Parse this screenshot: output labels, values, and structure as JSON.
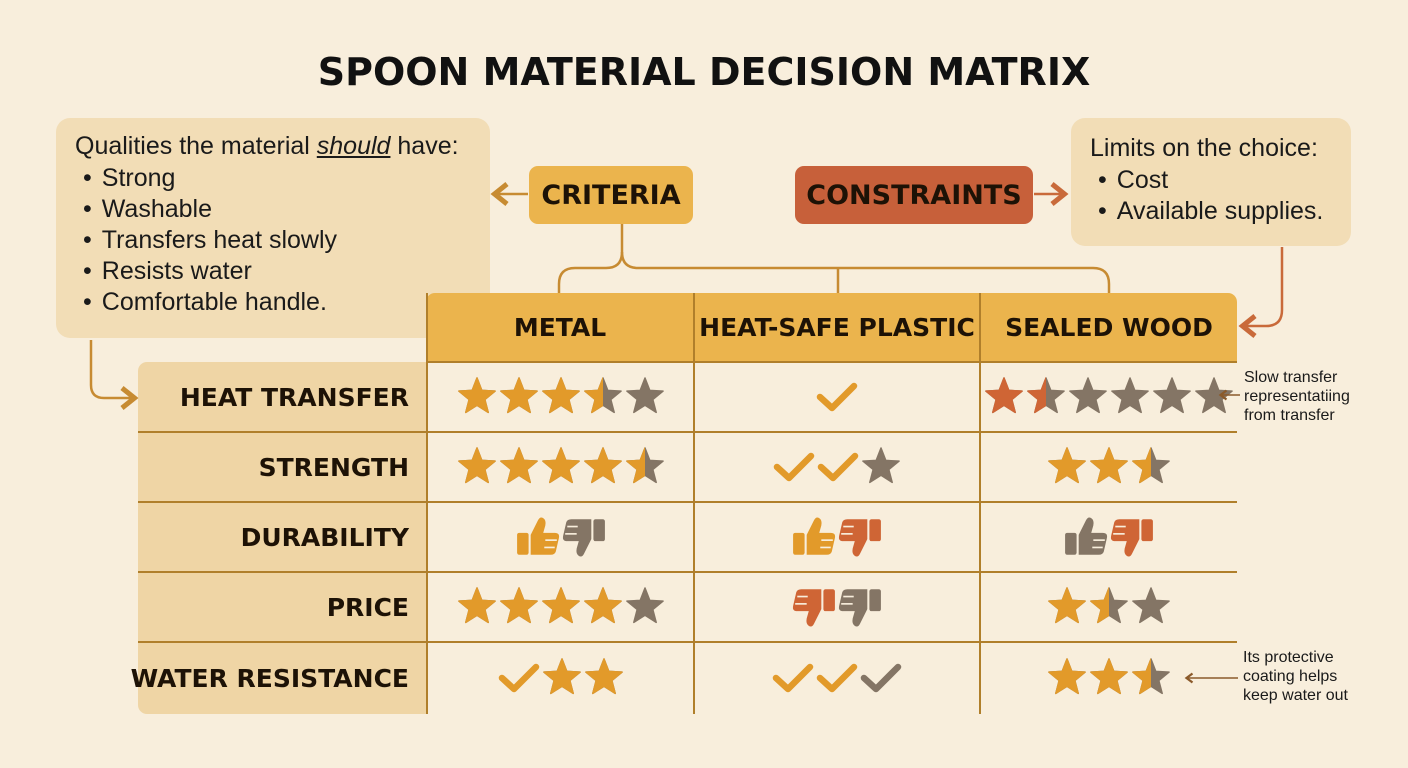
{
  "title": "SPOON MATERIAL DECISION MATRIX",
  "criteria_box": {
    "heading_pre": "Qualities the material ",
    "heading_em": "should",
    "heading_post": " have:",
    "items": [
      "Strong",
      "Washable",
      "Transfers heat slowly",
      "Resists water",
      "Comfortable handle."
    ]
  },
  "criteria_label": "CRITERIA",
  "constraints_label": "CONSTRAINTS",
  "constraints_box": {
    "heading": "Limits on the choice:",
    "items": [
      "Cost",
      "Available supplies."
    ]
  },
  "columns": [
    "METAL",
    "HEAT-SAFE PLASTIC",
    "SEALED WOOD"
  ],
  "rows": [
    {
      "label": "HEAT TRANSFER",
      "cells": [
        [
          {
            "t": "star",
            "v": 3.5,
            "n": 5,
            "c": "gold"
          }
        ],
        [
          {
            "t": "check",
            "n": 1,
            "c": "gold"
          }
        ],
        [
          {
            "t": "star",
            "v": 1.5,
            "n": 6,
            "c": "orange"
          }
        ]
      ]
    },
    {
      "label": "STRENGTH",
      "cells": [
        [
          {
            "t": "star",
            "v": 4.5,
            "n": 5,
            "c": "gold"
          }
        ],
        [
          {
            "t": "check",
            "n": 2,
            "c": "gold"
          },
          {
            "t": "star",
            "v": 0,
            "n": 1,
            "c": "gold"
          }
        ],
        [
          {
            "t": "star",
            "v": 2.5,
            "n": 3,
            "c": "gold"
          }
        ]
      ]
    },
    {
      "label": "DURABILITY",
      "cells": [
        [
          {
            "t": "up",
            "c": "gold"
          },
          {
            "t": "down",
            "c": "gray"
          }
        ],
        [
          {
            "t": "up",
            "c": "gold"
          },
          {
            "t": "down",
            "c": "orange"
          }
        ],
        [
          {
            "t": "up",
            "c": "gray"
          },
          {
            "t": "down",
            "c": "orange"
          }
        ]
      ]
    },
    {
      "label": "PRICE",
      "cells": [
        [
          {
            "t": "star",
            "v": 4,
            "n": 5,
            "c": "gold"
          }
        ],
        [
          {
            "t": "down",
            "c": "orange"
          },
          {
            "t": "down",
            "c": "gray"
          }
        ],
        [
          {
            "t": "star",
            "v": 1.5,
            "n": 3,
            "c": "gold"
          }
        ]
      ]
    },
    {
      "label": "WATER RESISTANCE",
      "cells": [
        [
          {
            "t": "check",
            "n": 1,
            "c": "gold"
          },
          {
            "t": "star",
            "v": 2,
            "n": 2,
            "c": "gold"
          }
        ],
        [
          {
            "t": "check",
            "n": 2,
            "c": "gold"
          },
          {
            "t": "check",
            "n": 1,
            "c": "gray"
          }
        ],
        [
          {
            "t": "star",
            "v": 2.5,
            "n": 3,
            "c": "gold"
          }
        ]
      ]
    }
  ],
  "notes": {
    "heat": [
      "Slow transfer",
      "representatiing",
      "from transfer"
    ],
    "water": [
      "Its protective",
      "coating helps",
      "keep water out"
    ]
  },
  "colors": {
    "gold": "#e29a2a",
    "orange": "#cf6535",
    "gray": "#847565",
    "header_bg": "#ebb44d",
    "label_bg": "#efd5a5",
    "criteria_pill": "#ebb44d",
    "constraints_pill": "#c7603a",
    "lines": "#b07f2b",
    "connector": "#c78b32",
    "constraint_arrow": "#c96a3a"
  }
}
